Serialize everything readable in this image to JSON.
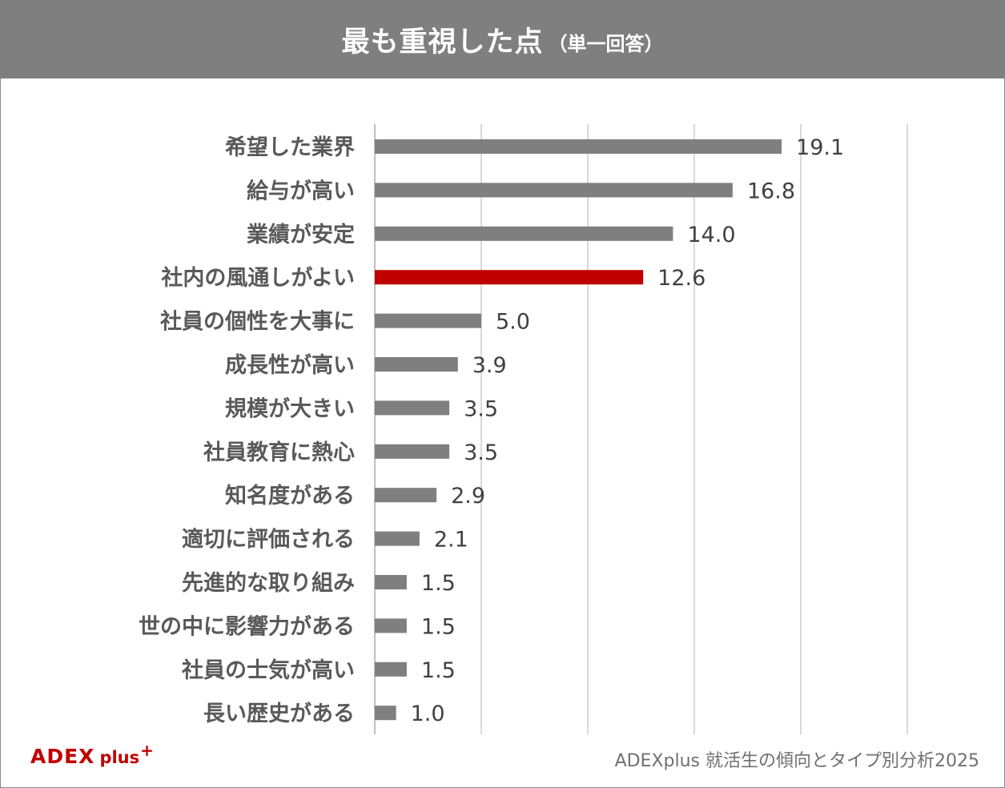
{
  "header": {
    "title": "最も重視した点",
    "subtitle": "（単一回答）"
  },
  "colors": {
    "header_bg": "#7f7f7f",
    "bar": "#7f7f7f",
    "highlight_bar": "#c00000",
    "gridline": "#d9d9d9",
    "label_text": "#595959",
    "value_text": "#404040"
  },
  "chart_data": {
    "type": "bar",
    "orientation": "horizontal",
    "categories": [
      "希望した業界",
      "給与が高い",
      "業績が安定",
      "社内の風通しがよい",
      "社員の個性を大事に",
      "成長性が高い",
      "規模が大きい",
      "社員教育に熱心",
      "知名度がある",
      "適切に評価される",
      "先進的な取り組み",
      "世の中に影響力がある",
      "社員の士気が高い",
      "長い歴史がある"
    ],
    "values": [
      19.1,
      16.8,
      14.0,
      12.6,
      5.0,
      3.9,
      3.5,
      3.5,
      2.9,
      2.1,
      1.5,
      1.5,
      1.5,
      1.0
    ],
    "value_labels": [
      "19.1",
      "16.8",
      "14.0",
      "12.6",
      "5.0",
      "3.9",
      "3.5",
      "3.5",
      "2.9",
      "2.1",
      "1.5",
      "1.5",
      "1.5",
      "1.0"
    ],
    "highlight_index": 3,
    "xlim": [
      0,
      25
    ],
    "gridlines": [
      0,
      5,
      10,
      15,
      20,
      25
    ],
    "grid": true,
    "legend": "none"
  },
  "footer": {
    "logo_text": "ADEX",
    "logo_plus": "plus",
    "logo_sup": "+",
    "source": "ADEXplus 就活生の傾向とタイプ別分析2025"
  }
}
